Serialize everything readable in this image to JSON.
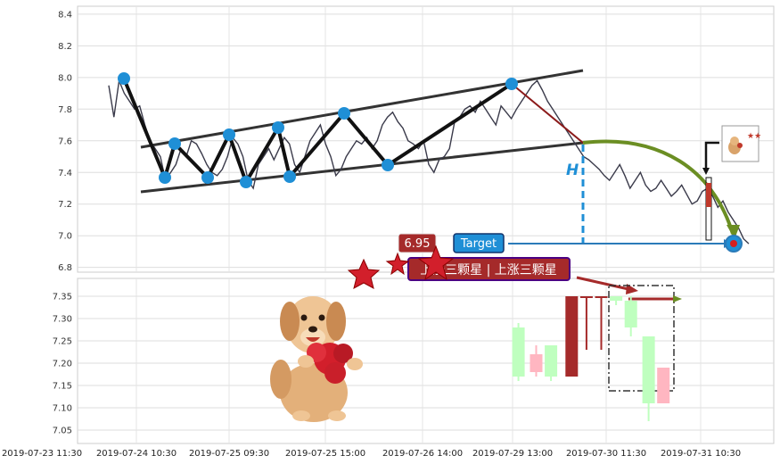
{
  "chart_data": [
    {
      "type": "line",
      "panel": "price",
      "yticks": [
        "6.8",
        "7.0",
        "7.2",
        "7.4",
        "7.6",
        "7.8",
        "8.0",
        "8.2",
        "8.4"
      ],
      "ylim": [
        6.77,
        8.45
      ],
      "grid": true,
      "price_series": [
        7.95,
        7.75,
        7.98,
        7.9,
        7.85,
        7.8,
        7.82,
        7.7,
        7.6,
        7.55,
        7.5,
        7.35,
        7.4,
        7.45,
        7.55,
        7.5,
        7.6,
        7.58,
        7.52,
        7.45,
        7.4,
        7.38,
        7.42,
        7.5,
        7.62,
        7.58,
        7.5,
        7.35,
        7.3,
        7.45,
        7.5,
        7.55,
        7.48,
        7.55,
        7.62,
        7.58,
        7.45,
        7.4,
        7.5,
        7.6,
        7.65,
        7.7,
        7.58,
        7.5,
        7.38,
        7.42,
        7.5,
        7.55,
        7.6,
        7.58,
        7.62,
        7.55,
        7.6,
        7.7,
        7.75,
        7.78,
        7.72,
        7.68,
        7.6,
        7.58,
        7.55,
        7.6,
        7.45,
        7.4,
        7.48,
        7.5,
        7.55,
        7.72,
        7.75,
        7.8,
        7.82,
        7.78,
        7.85,
        7.8,
        7.75,
        7.7,
        7.82,
        7.78,
        7.74,
        7.8,
        7.85,
        7.9,
        7.95,
        7.98,
        7.92,
        7.85,
        7.8,
        7.75,
        7.7,
        7.65,
        7.6,
        7.55,
        7.5,
        7.48,
        7.45,
        7.42,
        7.38,
        7.35,
        7.4,
        7.45,
        7.38,
        7.3,
        7.35,
        7.4,
        7.32,
        7.28,
        7.3,
        7.35,
        7.3,
        7.25,
        7.28,
        7.32,
        7.26,
        7.2,
        7.22,
        7.28,
        7.3,
        7.25,
        7.18,
        7.22,
        7.15,
        7.1,
        7.05,
        6.98,
        6.95
      ],
      "pivots": [
        {
          "x": 0.03,
          "y": 8.0
        },
        {
          "x": 0.1,
          "y": 7.37
        },
        {
          "x": 0.115,
          "y": 7.59
        },
        {
          "x": 0.175,
          "y": 7.37
        },
        {
          "x": 0.21,
          "y": 7.64
        },
        {
          "x": 0.245,
          "y": 7.35
        },
        {
          "x": 0.305,
          "y": 7.69
        },
        {
          "x": 0.325,
          "y": 7.38
        },
        {
          "x": 0.415,
          "y": 7.78
        },
        {
          "x": 0.52,
          "y": 7.45
        },
        {
          "x": 0.72,
          "y": 7.97
        }
      ],
      "annotations": {
        "target_label": "Target",
        "target_value": "6.95",
        "height_label": "H",
        "stars_text": "上涨三颗星 | 上涨三颗星"
      }
    },
    {
      "type": "candlestick",
      "panel": "volume",
      "yticks": [
        "7.05",
        "7.10",
        "7.15",
        "7.20",
        "7.25",
        "7.30",
        "7.35"
      ],
      "ylim": [
        7.02,
        7.39
      ],
      "grid": true,
      "candles": [
        {
          "x": 0.745,
          "open": 7.17,
          "close": 7.28,
          "high": 7.29,
          "low": 7.16,
          "color": "#bfffbf"
        },
        {
          "x": 0.775,
          "open": 7.22,
          "close": 7.18,
          "high": 7.24,
          "low": 7.17,
          "color": "#ffb6c1"
        },
        {
          "x": 0.8,
          "open": 7.17,
          "close": 7.24,
          "high": 7.24,
          "low": 7.16,
          "color": "#bfffbf"
        },
        {
          "x": 0.835,
          "open": 7.35,
          "close": 7.17,
          "high": 7.35,
          "low": 7.17,
          "color": "#a52a2a"
        },
        {
          "x": 0.86,
          "open": 7.35,
          "close": 7.35,
          "high": 7.35,
          "low": 7.23,
          "color": "#a52a2a"
        },
        {
          "x": 0.885,
          "open": 7.35,
          "close": 7.35,
          "high": 7.35,
          "low": 7.23,
          "color": "#a52a2a"
        },
        {
          "x": 0.91,
          "open": 7.34,
          "close": 7.35,
          "high": 7.35,
          "low": 7.33,
          "color": "#bfffbf"
        },
        {
          "x": 0.935,
          "open": 7.28,
          "close": 7.34,
          "high": 7.35,
          "low": 7.26,
          "color": "#bfffbf"
        },
        {
          "x": 0.965,
          "open": 7.11,
          "close": 7.26,
          "high": 7.26,
          "low": 7.07,
          "color": "#bfffbf"
        },
        {
          "x": 0.99,
          "open": 7.11,
          "close": 7.19,
          "high": 7.19,
          "low": 7.11,
          "color": "#ffb6c1"
        }
      ]
    }
  ],
  "xticks": [
    "2019-07-23 11:30",
    "2019-07-24 10:30",
    "2019-07-25 09:30",
    "2019-07-25 15:00",
    "2019-07-26 14:00",
    "2019-07-29 13:00",
    "2019-07-30 11:30",
    "2019-07-31 10:30"
  ]
}
